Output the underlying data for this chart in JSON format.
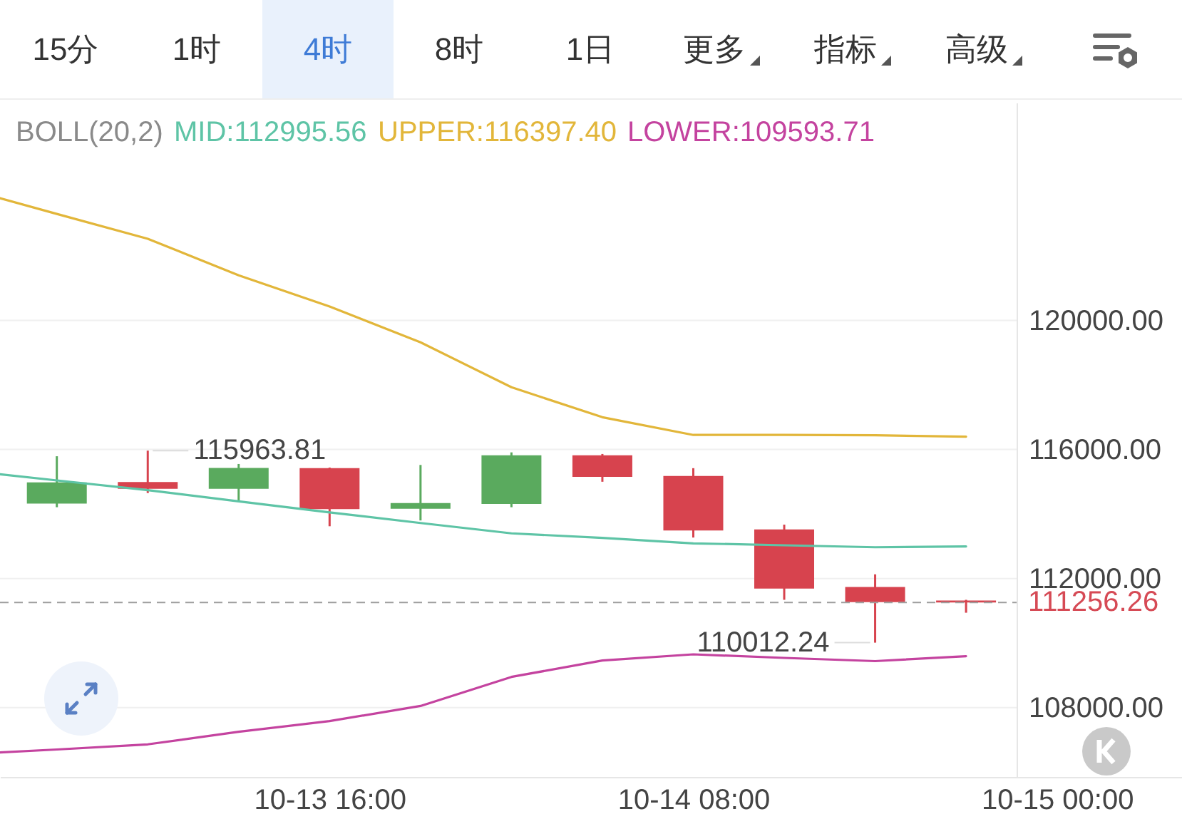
{
  "chart_data": {
    "type": "candlestick",
    "annotations": [
      "15分",
      "1时",
      "4时",
      "8时",
      "1日",
      "更多",
      "指标",
      "高级",
      {
        "text": "115963.81",
        "x": "--10-13T08:00",
        "y": 115963.81
      },
      {
        "text": "110012.24",
        "x": "--10-14T16:00",
        "y": 110012.24
      },
      {
        "text": "111256.26",
        "x": "--10-14T20:00",
        "y": 111256.26
      }
    ],
    "legend_title": "BOLL(20,2)",
    "x": [
      "--10-13T04:00",
      "--10-13T08:00",
      "--10-13T12:00",
      "--10-13T16:00",
      "--10-13T20:00",
      "--10-14T00:00",
      "--10-14T04:00",
      "--10-14T08:00",
      "--10-14T12:00",
      "--10-14T16:00",
      "--10-14T20:00"
    ],
    "ohlc": [
      [
        114320,
        115790,
        114210,
        114980
      ],
      [
        114990,
        115963.81,
        114650,
        114780
      ],
      [
        114780,
        115550,
        114390,
        115430
      ],
      [
        115420,
        115440,
        113620,
        114150
      ],
      [
        114160,
        115520,
        113800,
        114340
      ],
      [
        114310,
        115910,
        114210,
        115820
      ],
      [
        115820,
        115860,
        115000,
        115150
      ],
      [
        115180,
        115420,
        113270,
        113490
      ],
      [
        113520,
        113670,
        111340,
        111690
      ],
      [
        111740,
        112130,
        110012.24,
        111270
      ],
      [
        111320,
        111340,
        110940,
        111256.26
      ]
    ],
    "colors": [
      "#5aaa5e",
      "#d7434e",
      "#5aaa5e",
      "#d7434e",
      "#5aaa5e",
      "#5aaa5e",
      "#d7434e",
      "#d7434e",
      "#d7434e",
      "#d7434e",
      "#d7434e"
    ],
    "series": [
      {
        "name": "MID:112995.56",
        "type": "line",
        "color": "#5ec4a6",
        "x": [
          "--10-13T01:30",
          "--10-13T04:00",
          "--10-13T08:00",
          "--10-13T12:00",
          "--10-13T16:00",
          "--10-13T20:00",
          "--10-14T00:00",
          "--10-14T04:00",
          "--10-14T08:00",
          "--10-14T12:00",
          "--10-14T16:00",
          "--10-14T20:00"
        ],
        "values": [
          115230,
          115040,
          114740,
          114390,
          114050,
          113720,
          113400,
          113260,
          113090,
          113030,
          112970,
          112995.56
        ]
      },
      {
        "name": "UPPER:116397.40",
        "type": "line",
        "color": "#e2b63a",
        "x": [
          "--10-13T01:30",
          "--10-13T04:00",
          "--10-13T08:00",
          "--10-13T12:00",
          "--10-13T16:00",
          "--10-13T20:00",
          "--10-14T00:00",
          "--10-14T04:00",
          "--10-14T08:00",
          "--10-14T12:00",
          "--10-14T16:00",
          "--10-14T20:00"
        ],
        "values": [
          123790,
          123300,
          122530,
          121400,
          120430,
          119320,
          117930,
          117000,
          116450,
          116450,
          116440,
          116397.4
        ]
      },
      {
        "name": "LOWER:109593.71",
        "type": "line",
        "color": "#c4439f",
        "x": [
          "--10-13T01:30",
          "--10-13T04:00",
          "--10-13T08:00",
          "--10-13T12:00",
          "--10-13T16:00",
          "--10-13T20:00",
          "--10-14T00:00",
          "--10-14T04:00",
          "--10-14T08:00",
          "--10-14T12:00",
          "--10-14T16:00",
          "--10-14T20:00"
        ],
        "values": [
          106610,
          106700,
          106860,
          107250,
          107580,
          108050,
          108950,
          109460,
          109650,
          109540,
          109440,
          109593.71
        ]
      }
    ],
    "xlim": [
      "--10-13T01:30",
      "--10-15T05:30"
    ],
    "xticks": [
      {
        "value": "--10-13T16:00",
        "label": "10-13 16:00"
      },
      {
        "value": "--10-14T08:00",
        "label": "10-14 08:00"
      },
      {
        "value": "--10-15T00:00",
        "label": "10-15 00:00"
      }
    ],
    "ylim": [
      105850,
      126750
    ],
    "yticks": [
      {
        "value": 108000,
        "label": "108000.00"
      },
      {
        "value": 112000,
        "label": "112000.00"
      },
      {
        "value": 116000,
        "label": "116000.00"
      },
      {
        "value": 120000,
        "label": "120000.00"
      }
    ],
    "ref_lines": [
      {
        "axis": "y",
        "value": 111256.26,
        "color": "#9e9e9e",
        "line_style": "dashed"
      }
    ],
    "grid": "y",
    "legend": "top left"
  }
}
